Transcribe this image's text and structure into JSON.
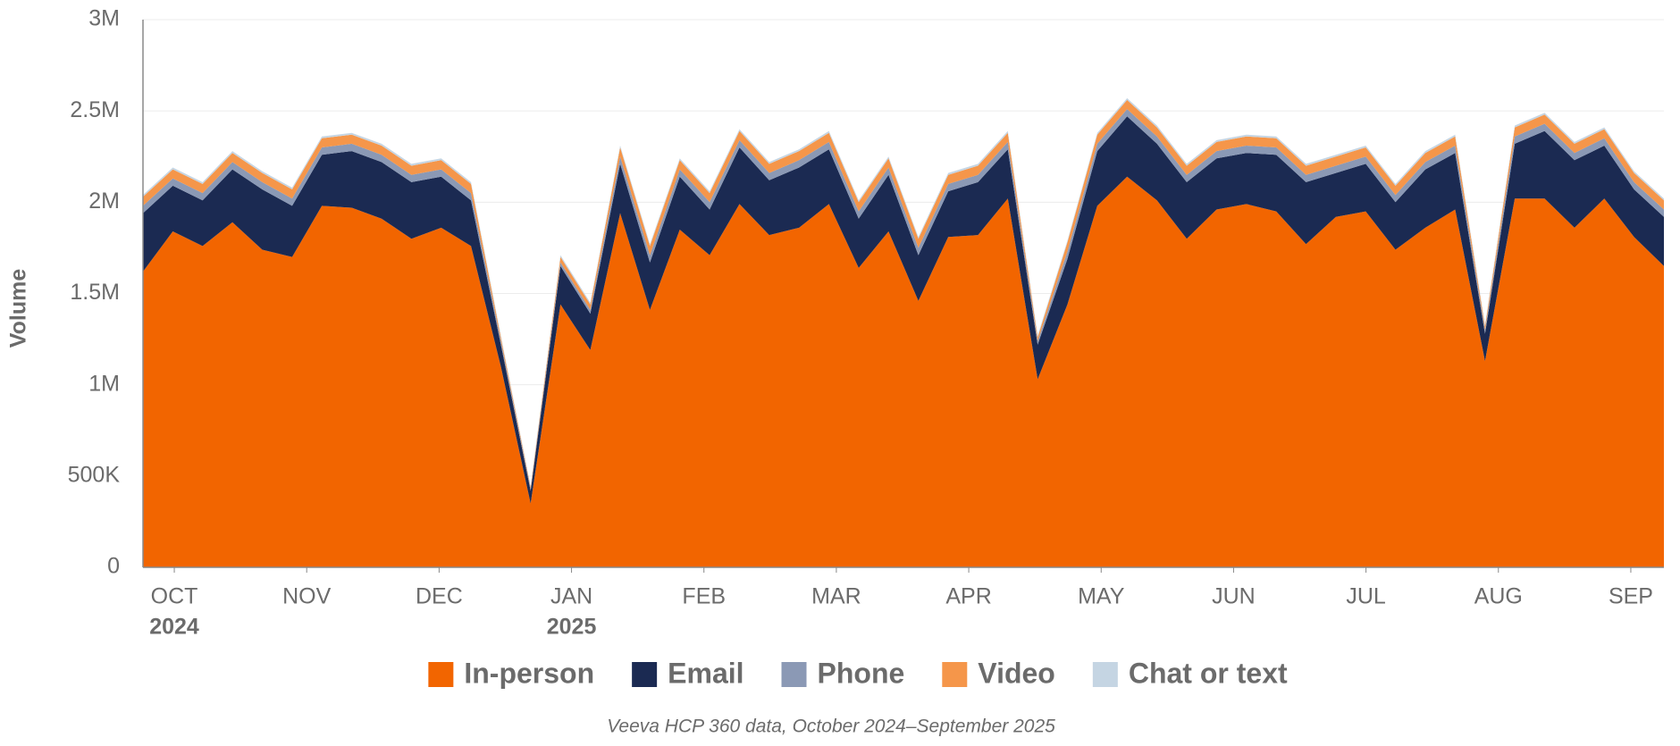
{
  "chart_data": {
    "type": "stacked-area",
    "y_label": "Volume",
    "caption": "Veeva HCP 360 data, October 2024–September 2025",
    "x": [
      0,
      1,
      2,
      3,
      4,
      5,
      6,
      7,
      8,
      9,
      10,
      11,
      12,
      13,
      14,
      15,
      16,
      17,
      18,
      19,
      20,
      21,
      22,
      23,
      24,
      25,
      26,
      27,
      28,
      29,
      30,
      31,
      32,
      33,
      34,
      35,
      36,
      37,
      38,
      39,
      40,
      41,
      42,
      43,
      44,
      45,
      46,
      47,
      48,
      49,
      50,
      51
    ],
    "xlim": [
      0,
      51
    ],
    "xticks": [
      {
        "value": 1.05,
        "label": "OCT",
        "year": "2024"
      },
      {
        "value": 5.49,
        "label": "NOV"
      },
      {
        "value": 9.93,
        "label": "DEC"
      },
      {
        "value": 14.37,
        "label": "JAN",
        "year": "2025"
      },
      {
        "value": 18.81,
        "label": "FEB"
      },
      {
        "value": 23.25,
        "label": "MAR"
      },
      {
        "value": 27.69,
        "label": "APR"
      },
      {
        "value": 32.13,
        "label": "MAY"
      },
      {
        "value": 36.57,
        "label": "JUN"
      },
      {
        "value": 41.01,
        "label": "JUL"
      },
      {
        "value": 45.45,
        "label": "AUG"
      },
      {
        "value": 49.89,
        "label": "SEP"
      }
    ],
    "ylim": [
      0,
      3000000
    ],
    "yticks": [
      0,
      {
        "value": 500000,
        "label": "500K"
      },
      {
        "value": 1000000,
        "label": "1M"
      },
      {
        "value": 1500000,
        "label": "1.5M"
      },
      {
        "value": 2000000,
        "label": "2M"
      },
      {
        "value": 2500000,
        "label": "2.5M"
      },
      {
        "value": 3000000,
        "label": "3M"
      }
    ],
    "grid": true,
    "legend": "bottom",
    "series": [
      {
        "name": "In-person",
        "color": "#f26500",
        "values": [
          1620000,
          1840000,
          1760000,
          1890000,
          1740000,
          1700000,
          1980000,
          1970000,
          1910000,
          1800000,
          1860000,
          1760000,
          1100000,
          350000,
          1440000,
          1190000,
          1940000,
          1410000,
          1850000,
          1710000,
          1990000,
          1820000,
          1860000,
          1990000,
          1640000,
          1840000,
          1460000,
          1810000,
          1820000,
          2020000,
          1030000,
          1440000,
          1980000,
          2140000,
          2010000,
          1800000,
          1960000,
          1990000,
          1950000,
          1770000,
          1920000,
          1950000,
          1740000,
          1860000,
          1960000,
          1130000,
          2020000,
          2020000,
          1860000,
          2020000,
          1810000,
          1650000
        ]
      },
      {
        "name": "Email",
        "color": "#1b2a52",
        "values": [
          320000,
          250000,
          250000,
          290000,
          330000,
          280000,
          280000,
          310000,
          310000,
          310000,
          280000,
          250000,
          120000,
          70000,
          210000,
          200000,
          270000,
          260000,
          290000,
          250000,
          310000,
          300000,
          330000,
          300000,
          270000,
          310000,
          250000,
          250000,
          290000,
          270000,
          190000,
          250000,
          300000,
          330000,
          310000,
          310000,
          280000,
          280000,
          310000,
          340000,
          240000,
          260000,
          260000,
          320000,
          310000,
          150000,
          300000,
          370000,
          370000,
          290000,
          260000,
          270000
        ]
      },
      {
        "name": "Phone",
        "color": "#8b99b5",
        "values": [
          40000,
          40000,
          40000,
          40000,
          40000,
          40000,
          40000,
          40000,
          40000,
          40000,
          40000,
          40000,
          20000,
          10000,
          20000,
          20000,
          40000,
          40000,
          40000,
          40000,
          40000,
          40000,
          40000,
          40000,
          40000,
          40000,
          40000,
          40000,
          40000,
          40000,
          20000,
          40000,
          40000,
          40000,
          40000,
          40000,
          40000,
          40000,
          40000,
          40000,
          40000,
          40000,
          40000,
          40000,
          40000,
          20000,
          40000,
          40000,
          40000,
          40000,
          40000,
          40000
        ]
      },
      {
        "name": "Video",
        "color": "#f5964a",
        "values": [
          50000,
          50000,
          50000,
          50000,
          50000,
          50000,
          50000,
          50000,
          50000,
          50000,
          50000,
          50000,
          20000,
          10000,
          30000,
          30000,
          50000,
          50000,
          50000,
          50000,
          50000,
          50000,
          50000,
          50000,
          50000,
          50000,
          50000,
          50000,
          50000,
          50000,
          20000,
          50000,
          50000,
          50000,
          50000,
          50000,
          50000,
          50000,
          50000,
          50000,
          50000,
          50000,
          50000,
          50000,
          50000,
          20000,
          50000,
          50000,
          50000,
          50000,
          50000,
          50000
        ]
      },
      {
        "name": "Chat or text",
        "color": "#c5d5e3",
        "values": [
          10000,
          10000,
          10000,
          10000,
          10000,
          10000,
          10000,
          10000,
          10000,
          10000,
          10000,
          10000,
          10000,
          5000,
          10000,
          10000,
          10000,
          10000,
          10000,
          10000,
          10000,
          10000,
          10000,
          10000,
          10000,
          10000,
          10000,
          10000,
          10000,
          10000,
          10000,
          10000,
          10000,
          10000,
          10000,
          10000,
          10000,
          10000,
          10000,
          10000,
          10000,
          10000,
          10000,
          10000,
          10000,
          10000,
          10000,
          10000,
          10000,
          10000,
          10000,
          10000
        ]
      }
    ]
  }
}
